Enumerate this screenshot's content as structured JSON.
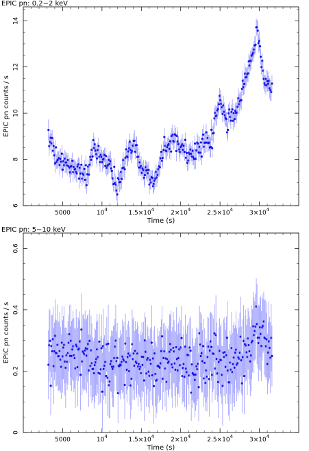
{
  "chart_data": [
    {
      "type": "scatter",
      "title": "EPIC pn: 0.2−2 keV",
      "xlabel": "Time (s)",
      "ylabel": "EPIC pn counts / s",
      "xlim": [
        0,
        35000
      ],
      "ylim": [
        6,
        14.6
      ],
      "xticks": [
        {
          "value": 5000,
          "label": "5000"
        },
        {
          "value": 10000,
          "label": "10^4"
        },
        {
          "value": 15000,
          "label": "1.5×10^4"
        },
        {
          "value": 20000,
          "label": "2×10^4"
        },
        {
          "value": 25000,
          "label": "2.5×10^4"
        },
        {
          "value": 30000,
          "label": "3×10^4"
        }
      ],
      "yticks": [
        {
          "value": 6,
          "label": "6"
        },
        {
          "value": 8,
          "label": "8"
        },
        {
          "value": 10,
          "label": "10"
        },
        {
          "value": 12,
          "label": "12"
        },
        {
          "value": 14,
          "label": "14"
        }
      ],
      "anchors": [
        [
          3200,
          9.2
        ],
        [
          4000,
          8.1
        ],
        [
          5000,
          7.8
        ],
        [
          6000,
          7.7
        ],
        [
          7000,
          7.6
        ],
        [
          8000,
          7.3
        ],
        [
          9000,
          8.4
        ],
        [
          10000,
          8.0
        ],
        [
          11000,
          7.8
        ],
        [
          12000,
          6.8
        ],
        [
          13000,
          8.0
        ],
        [
          14000,
          8.9
        ],
        [
          15000,
          7.6
        ],
        [
          16000,
          7.2
        ],
        [
          17000,
          7.4
        ],
        [
          18000,
          8.7
        ],
        [
          19000,
          8.8
        ],
        [
          20000,
          8.8
        ],
        [
          21000,
          8.2
        ],
        [
          22000,
          8.4
        ],
        [
          23000,
          8.6
        ],
        [
          24000,
          8.9
        ],
        [
          25000,
          10.6
        ],
        [
          25800,
          9.6
        ],
        [
          26500,
          9.8
        ],
        [
          27500,
          10.5
        ],
        [
          28500,
          11.9
        ],
        [
          29300,
          12.9
        ],
        [
          29700,
          13.7
        ],
        [
          30300,
          12.0
        ],
        [
          31000,
          11.2
        ],
        [
          31600,
          11.0
        ]
      ],
      "noise": 0.3,
      "error": 0.38,
      "n_points": 300,
      "color": "#1414e6",
      "error_color": "#8c8cff"
    },
    {
      "type": "scatter",
      "title": "EPIC pn: 5−10 keV",
      "xlabel": "Time (s)",
      "ylabel": "EPIC pn counts / s",
      "xlim": [
        0,
        35000
      ],
      "ylim": [
        0,
        0.65
      ],
      "xticks": [
        {
          "value": 5000,
          "label": "5000"
        },
        {
          "value": 10000,
          "label": "10^4"
        },
        {
          "value": 15000,
          "label": "1.5×10^4"
        },
        {
          "value": 20000,
          "label": "2×10^4"
        },
        {
          "value": 25000,
          "label": "2.5×10^4"
        },
        {
          "value": 30000,
          "label": "3×10^4"
        }
      ],
      "yticks": [
        {
          "value": 0,
          "label": "0"
        },
        {
          "value": 0.2,
          "label": "0.2"
        },
        {
          "value": 0.4,
          "label": "0.4"
        },
        {
          "value": 0.6,
          "label": "0.6"
        }
      ],
      "anchors": [
        [
          3200,
          0.26
        ],
        [
          8000,
          0.23
        ],
        [
          13000,
          0.22
        ],
        [
          18000,
          0.23
        ],
        [
          23000,
          0.22
        ],
        [
          28000,
          0.24
        ],
        [
          29700,
          0.35
        ],
        [
          31600,
          0.25
        ]
      ],
      "noise": 0.055,
      "error": 0.11,
      "n_points": 300,
      "color": "#1414e6",
      "error_color": "#8c8cff"
    }
  ]
}
